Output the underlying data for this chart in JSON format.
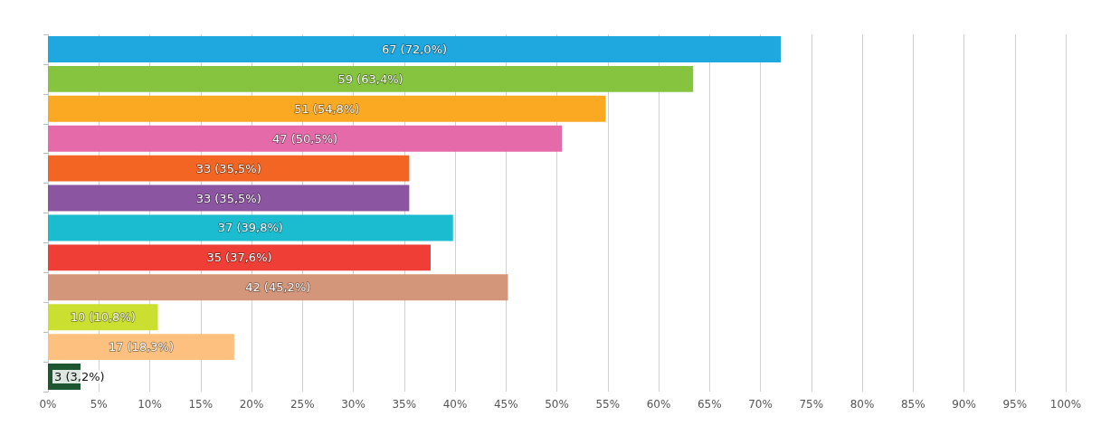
{
  "chart_data": {
    "type": "bar",
    "orientation": "horizontal",
    "categories": [
      null,
      null,
      null,
      null,
      null,
      null,
      null,
      null,
      null,
      null,
      null,
      null
    ],
    "values": [
      72.0,
      63.4,
      54.8,
      50.5,
      35.5,
      35.5,
      39.8,
      37.6,
      45.2,
      10.8,
      18.3,
      3.2
    ],
    "value_labels": [
      "67 (72,0%)",
      "59 (63,4%)",
      "51 (54,8%)",
      "47 (50,5%)",
      "33 (35,5%)",
      "33 (35,5%)",
      "37 (39,8%)",
      "35 (37,6%)",
      "42 (45,2%)",
      "10 (10,8%)",
      "17 (18,3%)",
      "3 (3,2%)"
    ],
    "colors": [
      "#1fa8e0",
      "#86c440",
      "#fba922",
      "#e46aa9",
      "#f26522",
      "#8c55a2",
      "#1bbccf",
      "#ef3e36",
      "#d4967a",
      "#cadf2f",
      "#fdc07e",
      "#1e5631"
    ],
    "xlim": [
      0,
      100
    ],
    "xticks": [
      {
        "value": 0,
        "label": "0%"
      },
      {
        "value": 5,
        "label": "5%"
      },
      {
        "value": 10,
        "label": "10%"
      },
      {
        "value": 15,
        "label": "15%"
      },
      {
        "value": 20,
        "label": "20%"
      },
      {
        "value": 25,
        "label": "25%"
      },
      {
        "value": 30,
        "label": "30%"
      },
      {
        "value": 35,
        "label": "35%"
      },
      {
        "value": 40,
        "label": "40%"
      },
      {
        "value": 45,
        "label": "45%"
      },
      {
        "value": 50,
        "label": "50%"
      },
      {
        "value": 55,
        "label": "55%"
      },
      {
        "value": 60,
        "label": "60%"
      },
      {
        "value": 65,
        "label": "65%"
      },
      {
        "value": 70,
        "label": "70%"
      },
      {
        "value": 75,
        "label": "75%"
      },
      {
        "value": 80,
        "label": "80%"
      },
      {
        "value": 85,
        "label": "85%"
      },
      {
        "value": 90,
        "label": "90%"
      },
      {
        "value": 95,
        "label": "95%"
      },
      {
        "value": 100,
        "label": "100%"
      }
    ],
    "grid": "x"
  }
}
